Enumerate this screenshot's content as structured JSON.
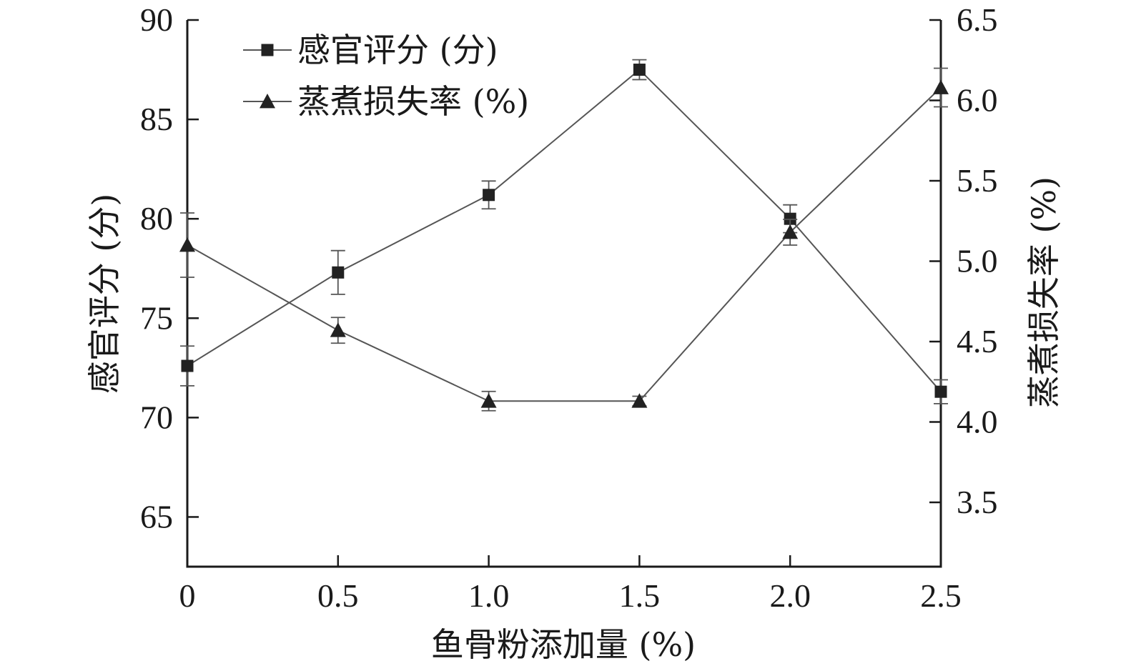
{
  "chart_data": {
    "type": "line",
    "x": [
      0,
      0.5,
      1.0,
      1.5,
      2.0,
      2.5
    ],
    "x_tick_labels": [
      "0",
      "0.5",
      "1.0",
      "1.5",
      "2.0",
      "2.5"
    ],
    "xlabel": "鱼骨粉添加量 (%)",
    "ylabel_left": "感官评分 (分)",
    "ylabel_right": "蒸煮损失率 (%)",
    "ylim_left": [
      62.5,
      90
    ],
    "ylim_right": [
      3.1,
      6.5
    ],
    "xlim": [
      0,
      2.5
    ],
    "yticks_left": [
      65,
      70,
      75,
      80,
      85,
      90
    ],
    "yticks_left_labels": [
      "65",
      "70",
      "75",
      "80",
      "85",
      "90"
    ],
    "yticks_right": [
      3.5,
      4.0,
      4.5,
      5.0,
      5.5,
      6.0,
      6.5
    ],
    "yticks_right_labels": [
      "3.5",
      "4.0",
      "4.5",
      "5.0",
      "5.5",
      "6.0",
      "6.5"
    ],
    "grid": false,
    "legend_position": "top-left",
    "series": [
      {
        "name": "感官评分 (分)",
        "axis": "left",
        "marker": "square",
        "values": [
          72.6,
          77.3,
          81.2,
          87.5,
          80.0,
          71.3
        ],
        "errors": [
          1.0,
          1.1,
          0.7,
          0.5,
          0.7,
          0.6
        ]
      },
      {
        "name": "蒸煮损失率 (%)",
        "axis": "right",
        "marker": "triangle",
        "values": [
          5.1,
          4.57,
          4.13,
          4.13,
          5.18,
          6.08
        ],
        "errors": [
          0.2,
          0.08,
          0.06,
          0.03,
          0.08,
          0.12
        ]
      }
    ],
    "line_color": "#555555",
    "marker_color": "#222222",
    "axis_color": "#1a1a1a"
  }
}
